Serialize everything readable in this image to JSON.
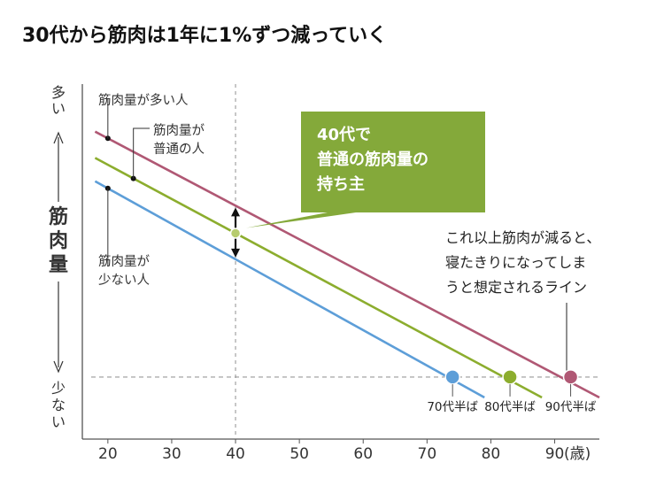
{
  "heading": "30代から筋肉は1年に1%ずつ減っていく",
  "chart_data": {
    "type": "line",
    "title": "30代から筋肉は1年に1%ずつ減っていく",
    "xlabel": "(歳)",
    "x_ticks": [
      20,
      30,
      40,
      50,
      60,
      70,
      80,
      90
    ],
    "xlim": [
      16,
      97
    ],
    "ylim": [
      0,
      100
    ],
    "y_axis": {
      "top_label": "多い",
      "arrow_up": "↑",
      "center_label": "筋肉量",
      "arrow_down": "↓",
      "bottom_label": "少ない"
    },
    "reference_x": 40,
    "threshold_y": 7,
    "colors": {
      "high": "#b05874",
      "normal": "#8cad2e",
      "low": "#5d9ed8",
      "callout": "#84a93a",
      "guide": "#9a9a9a"
    },
    "series": [
      {
        "key": "high",
        "label_lines": [
          "筋肉量が多い人"
        ],
        "x": [
          18,
          97
        ],
        "y": [
          91,
          0
        ]
      },
      {
        "key": "normal",
        "label_lines": [
          "筋肉量が",
          "普通の人"
        ],
        "x": [
          18,
          88
        ],
        "y": [
          82,
          0
        ]
      },
      {
        "key": "low",
        "label_lines": [
          "筋肉量が",
          "少ない人"
        ],
        "x": [
          18,
          79
        ],
        "y": [
          74,
          0
        ]
      }
    ],
    "callout_lines": [
      "40代で",
      "普通の筋肉量の",
      "持ち主"
    ],
    "annotation_lines": [
      "これ以上筋肉が減ると、",
      "寝たきりになってしま",
      "うと想定されるライン"
    ],
    "end_points": [
      {
        "key": "low",
        "x": 74,
        "label": "70代半ば"
      },
      {
        "key": "normal",
        "x": 83,
        "label": "80代半ば"
      },
      {
        "key": "high",
        "x": 92.5,
        "label": "90代半ば"
      }
    ]
  }
}
